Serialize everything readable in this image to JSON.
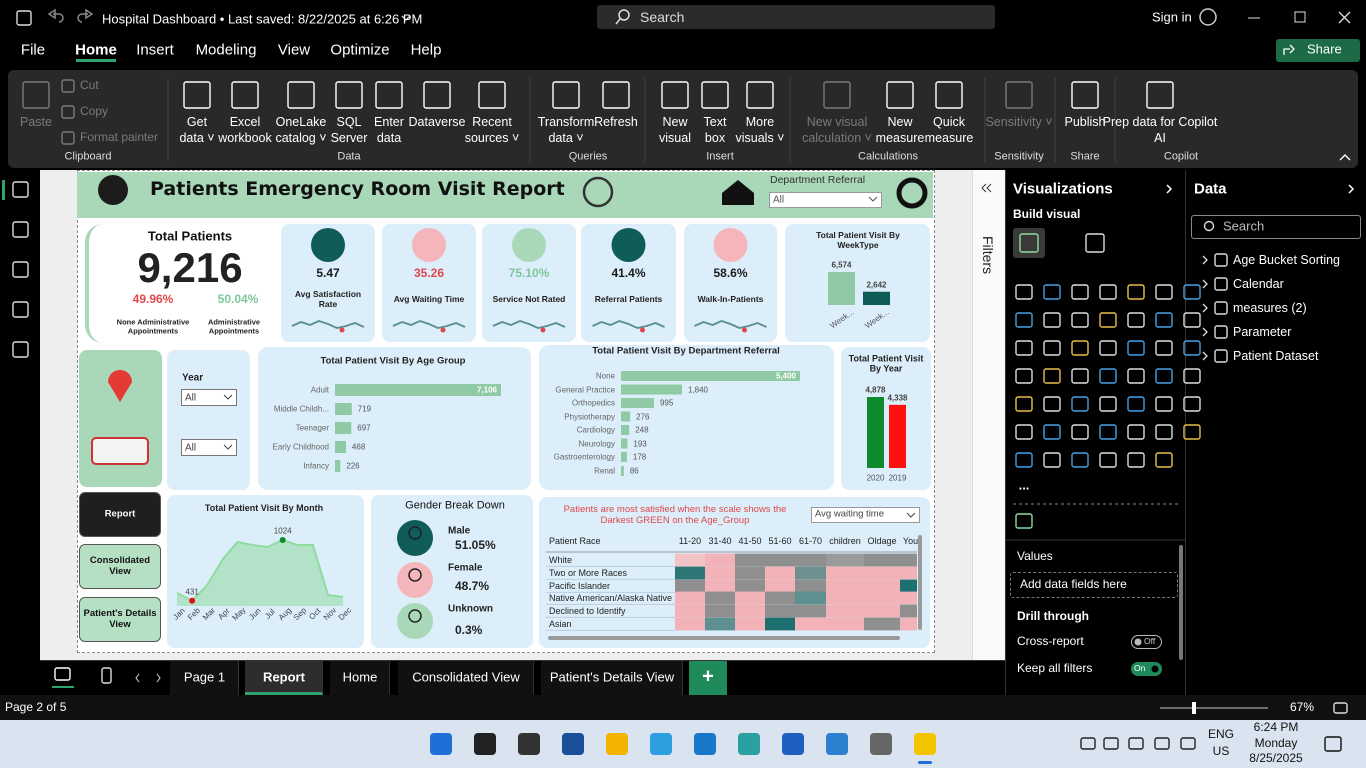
{
  "titlebar": {
    "document": "Hospital Dashboard • Last saved: 8/22/2025 at 6:26 PM",
    "search": "Search",
    "sign_in": "Sign in"
  },
  "menu": {
    "tabs": [
      "File",
      "Home",
      "Insert",
      "Modeling",
      "View",
      "Optimize",
      "Help"
    ],
    "active": 1,
    "share": "Share"
  },
  "ribbon": {
    "groups": [
      {
        "name": "Clipboard",
        "buttons": [
          {
            "label": "Paste",
            "enabled": false
          },
          {
            "label": "Cut",
            "enabled": false
          },
          {
            "label": "Copy",
            "enabled": false
          },
          {
            "label": "Format painter",
            "enabled": false
          }
        ]
      },
      {
        "name": "Data",
        "buttons": [
          {
            "label": "Get data ˅",
            "enabled": true
          },
          {
            "label": "Excel workbook",
            "enabled": true
          },
          {
            "label": "OneLake catalog ˅",
            "enabled": true
          },
          {
            "label": "SQL Server",
            "enabled": true
          },
          {
            "label": "Enter data",
            "enabled": true
          },
          {
            "label": "Dataverse",
            "enabled": true
          },
          {
            "label": "Recent sources ˅",
            "enabled": true
          }
        ]
      },
      {
        "name": "Queries",
        "buttons": [
          {
            "label": "Transform data ˅",
            "enabled": true
          },
          {
            "label": "Refresh",
            "enabled": true
          }
        ]
      },
      {
        "name": "Insert",
        "buttons": [
          {
            "label": "New visual",
            "enabled": true
          },
          {
            "label": "Text box",
            "enabled": true
          },
          {
            "label": "More visuals ˅",
            "enabled": true
          }
        ]
      },
      {
        "name": "Calculations",
        "buttons": [
          {
            "label": "New visual calculation ˅",
            "enabled": false
          },
          {
            "label": "New measure",
            "enabled": true
          },
          {
            "label": "Quick measure",
            "enabled": true
          }
        ]
      },
      {
        "name": "Sensitivity",
        "buttons": [
          {
            "label": "Sensitivity ˅",
            "enabled": false
          }
        ]
      },
      {
        "name": "Share",
        "buttons": [
          {
            "label": "Publish",
            "enabled": true
          }
        ]
      },
      {
        "name": "Copilot",
        "buttons": [
          {
            "label": "Prep data for Copilot AI",
            "enabled": true
          }
        ]
      }
    ]
  },
  "report": {
    "header": {
      "title": "Patients Emergency Room Visit Report",
      "slicer_label": "Department Referral",
      "slicer_value": "All"
    },
    "kpi": {
      "title": "Total Patients",
      "value": "9,216",
      "none_admin": {
        "value": "49.96%",
        "label": "None Administrative Appointments"
      },
      "admin": {
        "value": "50.04%",
        "label": "Administrative Appointments"
      }
    },
    "cards": [
      {
        "value": "5.47",
        "label": "Avg Satisfaction Rate",
        "color": "#1b1b1b",
        "icon": "#0f5c58"
      },
      {
        "value": "35.26",
        "label": "Avg Waiting Time",
        "color": "#e0474c",
        "icon": "#f4b6ba"
      },
      {
        "value": "75.10%",
        "label": "Service Not Rated",
        "color": "#7fc79c",
        "icon": "#a9d8b8"
      },
      {
        "value": "41.4%",
        "label": "Referral Patients",
        "color": "#1b1b1b",
        "icon": "#0f5c58"
      },
      {
        "value": "58.6%",
        "label": "Walk-In-Patients",
        "color": "#1b1b1b",
        "icon": "#f4b6ba"
      }
    ],
    "week_type": {
      "type": "bar",
      "title": "Total Patient Visit By WeekType",
      "categories": [
        "Week...",
        "Week..."
      ],
      "values": [
        6574,
        2642
      ],
      "value_labels": [
        "6,574",
        "2,642"
      ],
      "colors": [
        "#8fcaa5",
        "#0d5c55"
      ]
    },
    "year_slicer": {
      "label": "Year",
      "values": [
        "All",
        "All"
      ]
    },
    "age_group": {
      "type": "bar",
      "title": "Total Patient Visit By Age Group",
      "categories": [
        "Adult",
        "Middle Childh...",
        "Teenager",
        "Early Childhood",
        "Infancy"
      ],
      "values": [
        7106,
        719,
        697,
        468,
        226
      ],
      "value_labels": [
        "7,106",
        "719",
        "697",
        "468",
        "226"
      ],
      "color": "#8fcaa5"
    },
    "department": {
      "type": "bar",
      "title": "Total Patient Visit By Department Referral",
      "categories": [
        "None",
        "General Practice",
        "Orthopedics",
        "Physiotherapy",
        "Cardiology",
        "Neurology",
        "Gastroenterology",
        "Renal"
      ],
      "values": [
        5400,
        1840,
        995,
        276,
        248,
        193,
        178,
        86
      ],
      "value_labels": [
        "5,400",
        "1,840",
        "995",
        "276",
        "248",
        "193",
        "178",
        "86"
      ],
      "color": "#8fcaa5"
    },
    "by_year": {
      "type": "bar",
      "title": "Total Patient Visit By Year",
      "categories": [
        "2020",
        "2019"
      ],
      "values": [
        4878,
        4338
      ],
      "value_labels": [
        "4,878",
        "4,338"
      ],
      "colors": [
        "#0c8a2c",
        "#ff1010"
      ]
    },
    "nav": [
      "Report",
      "Consolidated View",
      "Patient's Details View"
    ],
    "month": {
      "type": "line",
      "title": "Total Patient Visit By Month",
      "categories": [
        "Jan",
        "Feb",
        "Mar",
        "Apr",
        "May",
        "Jun",
        "Jul",
        "Aug",
        "Sep",
        "Oct",
        "Nov",
        "Dec"
      ],
      "values": [
        507,
        431,
        585,
        830,
        1005,
        975,
        956,
        1024,
        975,
        975,
        488,
        468
      ],
      "color": "#8fdba0"
    },
    "gender": {
      "title": "Gender Break Down",
      "items": [
        {
          "label": "Male",
          "value": "51.05%",
          "color": "#0f5c58"
        },
        {
          "label": "Female",
          "value": "48.7%",
          "color": "#f4b6ba"
        },
        {
          "label": "Unknown",
          "value": "0.3%",
          "color": "#a9d8b8"
        }
      ]
    },
    "heatmap": {
      "note": "Patients are most satisfied when the scale shows the Darkest GREEN on the Age_Group",
      "measure": "Avg waiting time",
      "row_header": "Patient Race",
      "columns": [
        "11-20",
        "31-40",
        "41-50",
        "51-60",
        "61-70",
        "children",
        "Oldage",
        "You"
      ],
      "rows": [
        "White",
        "Two or More Races",
        "Pacific Islander",
        "Native American/Alaska Native",
        "Declined to Identify",
        "Asian"
      ],
      "cell_colors": [
        [
          "#f2c4c6",
          "#f2b3b8",
          "#8f8f8f",
          "#8f8f8f",
          "#8f8f8f",
          "#9a9a9a",
          "#8f8f8f",
          "#8f8f8f"
        ],
        [
          "#2f7777",
          "#f2b3b8",
          "#8f8f8f",
          "#f2b3b8",
          "#6e8f8f",
          "#f2b3b8",
          "#f2b3b8",
          "#f2b3b8"
        ],
        [
          "#8f8f8f",
          "#f2b3b8",
          "#8f8f8f",
          "#f2b3b8",
          "#8f8f8f",
          "#f2b3b8",
          "#f2b3b8",
          "#1e6f70"
        ],
        [
          "#f2b3b8",
          "#8f8f8f",
          "#f2b3b8",
          "#8f8f8f",
          "#5f9090",
          "#f2b3b8",
          "#f2b3b8",
          "#f2b3b8"
        ],
        [
          "#f2b3b8",
          "#8f8f8f",
          "#f2b3b8",
          "#8f8f8f",
          "#8f8f8f",
          "#f2b3b8",
          "#f2b3b8",
          "#8f8f8f"
        ],
        [
          "#f2b3b8",
          "#5f9090",
          "#f2b3b8",
          "#1e6f70",
          "#f2b3b8",
          "#f2b3b8",
          "#8f8f8f",
          "#f2b3b8"
        ]
      ]
    }
  },
  "filters": {
    "title": "Filters"
  },
  "visualizations": {
    "title": "Visualizations",
    "subtitle": "Build visual",
    "more": "...",
    "values": "Values",
    "drop": "Add data fields here",
    "drill": "Drill through",
    "cross_report": {
      "label": "Cross-report",
      "state": "Off"
    },
    "keep_filters": {
      "label": "Keep all filters",
      "state": "On"
    }
  },
  "data_pane": {
    "title": "Data",
    "search": "Search",
    "tables": [
      "Age Bucket Sorting",
      "Calendar",
      "measures (2)",
      "Parameter",
      "Patient Dataset"
    ]
  },
  "pages": {
    "tabs": [
      "Page 1",
      "Report",
      "Home",
      "Consolidated View",
      "Patient's Details View"
    ],
    "active": 1,
    "add": "+"
  },
  "status": {
    "page": "Page 2 of 5",
    "zoom": "67%"
  },
  "taskbar": {
    "lang": "ENG",
    "region": "US",
    "time": "6:24 PM",
    "day": "Monday",
    "date": "8/25/2025"
  }
}
